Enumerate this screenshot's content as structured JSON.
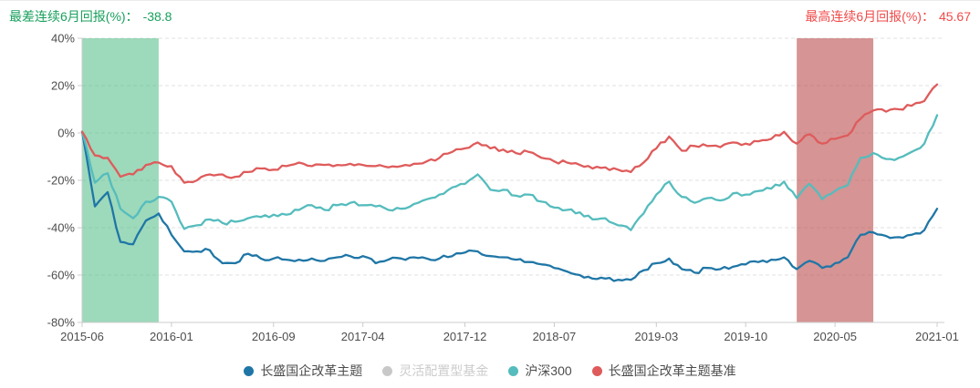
{
  "header": {
    "left_label": "最差连续6月回报(%)：",
    "left_value": "-38.8",
    "right_label": "最高连续6月回报(%)：",
    "right_value": "45.67"
  },
  "legend": [
    {
      "label": "长盛国企改革主题",
      "color": "#1f76a6",
      "enabled": true
    },
    {
      "label": "灵活配置型基金",
      "color": "#c8c8c8",
      "enabled": false
    },
    {
      "label": "沪深300",
      "color": "#55bcbd",
      "enabled": true
    },
    {
      "label": "长盛国企改革主题基准",
      "color": "#df5b5b",
      "enabled": true
    }
  ],
  "chart_data": {
    "type": "line",
    "title": "",
    "xlabel": "",
    "ylabel": "",
    "ylim": [
      -80,
      40
    ],
    "grid": "dashed",
    "legend_position": "bottom",
    "yticks": [
      "40%",
      "20%",
      "0%",
      "-20%",
      "-40%",
      "-60%",
      "-80%"
    ],
    "ytick_values": [
      40,
      20,
      0,
      -20,
      -40,
      -60,
      -80
    ],
    "xticks": [
      "2015-06",
      "2016-01",
      "2016-09",
      "2017-04",
      "2017-12",
      "2018-07",
      "2019-03",
      "2019-10",
      "2020-05",
      "2021-01"
    ],
    "categories": [
      "2015-06",
      "2015-07",
      "2015-08",
      "2015-09",
      "2015-10",
      "2015-11",
      "2015-12",
      "2016-01",
      "2016-02",
      "2016-03",
      "2016-04",
      "2016-05",
      "2016-06",
      "2016-07",
      "2016-08",
      "2016-09",
      "2016-10",
      "2016-11",
      "2016-12",
      "2017-01",
      "2017-02",
      "2017-03",
      "2017-04",
      "2017-05",
      "2017-06",
      "2017-07",
      "2017-08",
      "2017-09",
      "2017-10",
      "2017-11",
      "2017-12",
      "2018-01",
      "2018-02",
      "2018-03",
      "2018-04",
      "2018-05",
      "2018-06",
      "2018-07",
      "2018-08",
      "2018-09",
      "2018-10",
      "2018-11",
      "2018-12",
      "2019-01",
      "2019-02",
      "2019-03",
      "2019-04",
      "2019-05",
      "2019-06",
      "2019-07",
      "2019-08",
      "2019-09",
      "2019-10",
      "2019-11",
      "2019-12",
      "2020-01",
      "2020-02",
      "2020-03",
      "2020-04",
      "2020-05",
      "2020-06",
      "2020-07",
      "2020-08",
      "2020-09",
      "2020-10",
      "2020-11",
      "2020-12",
      "2021-01"
    ],
    "bands": [
      {
        "name": "worst-6month-window",
        "from": "2015-06",
        "to": "2015-12",
        "color": "rgba(60,180,120,0.5)"
      },
      {
        "name": "best-6month-window",
        "from": "2020-02",
        "to": "2020-08",
        "color": "rgba(180,60,60,0.55)"
      }
    ],
    "series": [
      {
        "name": "长盛国企改革主题",
        "color": "#1f76a6",
        "enabled": true,
        "values": [
          0.5,
          -31,
          -25,
          -46,
          -47,
          -37,
          -34,
          -43,
          -50,
          -50,
          -49.5,
          -55,
          -55,
          -51,
          -53,
          -53,
          -53.5,
          -53.5,
          -53,
          -54,
          -52.5,
          -52,
          -52,
          -55,
          -53.5,
          -53,
          -52.5,
          -53,
          -53,
          -52,
          -50.5,
          -50,
          -52,
          -52.5,
          -53.5,
          -54.5,
          -55.5,
          -57,
          -58.5,
          -60,
          -61.5,
          -61.5,
          -62,
          -62,
          -58,
          -55,
          -53,
          -57.5,
          -59,
          -57,
          -57.5,
          -56.5,
          -55.5,
          -54.5,
          -53.5,
          -52.5,
          -57.5,
          -54,
          -57,
          -55,
          -52.5,
          -43,
          -42,
          -43.5,
          -44,
          -43,
          -41,
          -32
        ]
      },
      {
        "name": "灵活配置型基金",
        "color": "#c8c8c8",
        "enabled": false,
        "values": []
      },
      {
        "name": "沪深300",
        "color": "#55bcbd",
        "enabled": true,
        "values": [
          0.5,
          -21,
          -17,
          -32,
          -36,
          -29,
          -27,
          -29,
          -40.5,
          -39,
          -36.5,
          -38,
          -37.5,
          -36,
          -35.5,
          -34.5,
          -34.5,
          -32.5,
          -30.5,
          -32.5,
          -30.5,
          -29.5,
          -30.5,
          -31,
          -32.5,
          -32,
          -30,
          -28,
          -26,
          -23,
          -21.5,
          -17.5,
          -24,
          -24,
          -26.5,
          -26,
          -29,
          -31.5,
          -32.5,
          -33.5,
          -36.5,
          -36,
          -39,
          -41,
          -34,
          -26,
          -20.5,
          -27,
          -29.5,
          -27.5,
          -28.5,
          -25.5,
          -26,
          -24.5,
          -23.5,
          -20.5,
          -27.5,
          -21.5,
          -28,
          -24.5,
          -22,
          -10.5,
          -8.5,
          -11,
          -10.5,
          -8,
          -4.5,
          7.5
        ]
      },
      {
        "name": "长盛国企改革主题基准",
        "color": "#df5b5b",
        "enabled": true,
        "values": [
          0.5,
          -9.5,
          -10.5,
          -18.5,
          -17.5,
          -13.5,
          -12.5,
          -14,
          -21,
          -20,
          -17.5,
          -17.5,
          -18.5,
          -16.5,
          -15,
          -15.5,
          -14,
          -12.5,
          -14,
          -13.5,
          -13.5,
          -13,
          -13.5,
          -14,
          -14.5,
          -14,
          -13,
          -12,
          -10.5,
          -8,
          -6.5,
          -4,
          -6.5,
          -7,
          -8.5,
          -8,
          -10.5,
          -12,
          -12.5,
          -13.5,
          -15,
          -14.5,
          -15.5,
          -16.5,
          -12.5,
          -6.5,
          -1.5,
          -7.5,
          -5.5,
          -5.5,
          -6,
          -4,
          -4.5,
          -3.5,
          -2.5,
          0.5,
          -4.5,
          -0.5,
          -4.5,
          -2.5,
          -1,
          6,
          9.5,
          9,
          10,
          11.5,
          13.5,
          20.5
        ]
      }
    ]
  }
}
